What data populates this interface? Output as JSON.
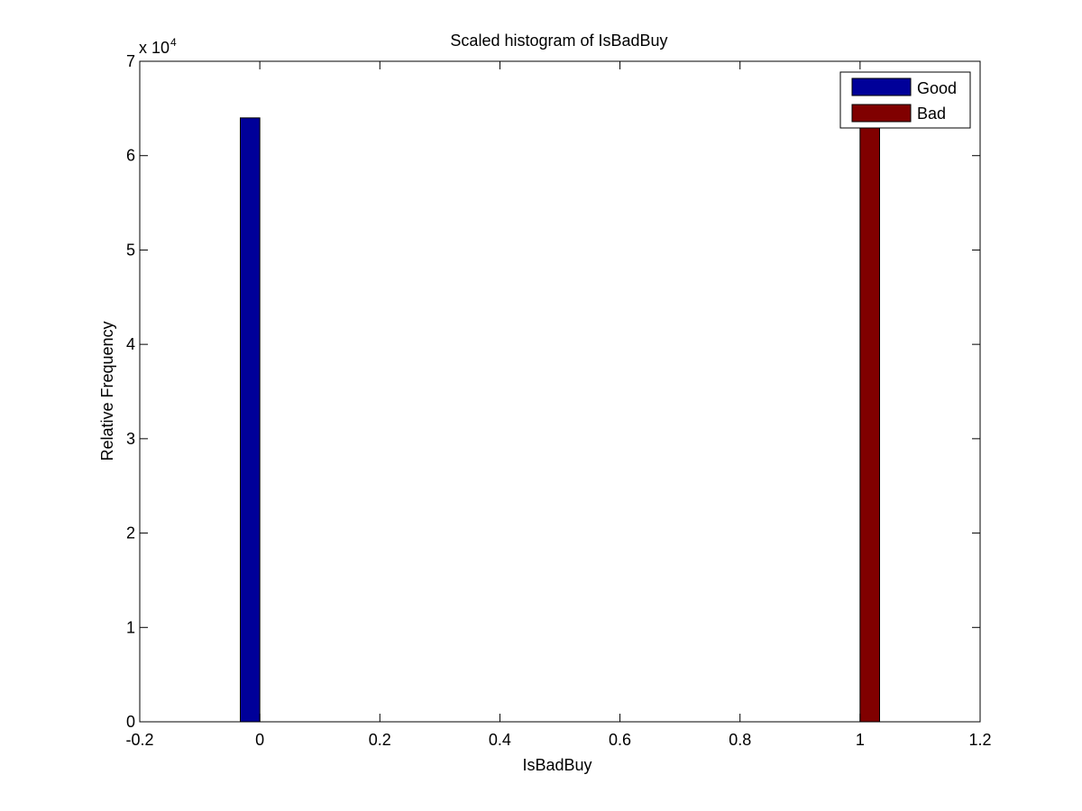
{
  "chart_data": {
    "type": "bar",
    "title": "Scaled histogram of IsBadBuy",
    "xlabel": "IsBadBuy",
    "ylabel": "Relative Frequency",
    "xlim": [
      -0.2,
      1.2
    ],
    "ylim": [
      0,
      70000
    ],
    "xticks": [
      "-0.2",
      "0",
      "0.2",
      "0.4",
      "0.6",
      "0.8",
      "1",
      "1.2"
    ],
    "xtick_values": [
      -0.2,
      0,
      0.2,
      0.4,
      0.6,
      0.8,
      1,
      1.2
    ],
    "yticks": [
      "0",
      "1",
      "2",
      "3",
      "4",
      "5",
      "6",
      "7"
    ],
    "ytick_values": [
      0,
      10000,
      20000,
      30000,
      40000,
      50000,
      60000,
      70000
    ],
    "y_exponent_base": "x 10",
    "y_exponent_power": "4",
    "grid": false,
    "legend_position": "top-right",
    "series": [
      {
        "name": "Good",
        "color": "#000099",
        "bars": [
          {
            "x_start": -0.0325,
            "x_end": 0.0,
            "value": 64000
          }
        ]
      },
      {
        "name": "Bad",
        "color": "#800000",
        "bars": [
          {
            "x_start": 1.0,
            "x_end": 1.0325,
            "value": 63000
          }
        ]
      }
    ]
  }
}
